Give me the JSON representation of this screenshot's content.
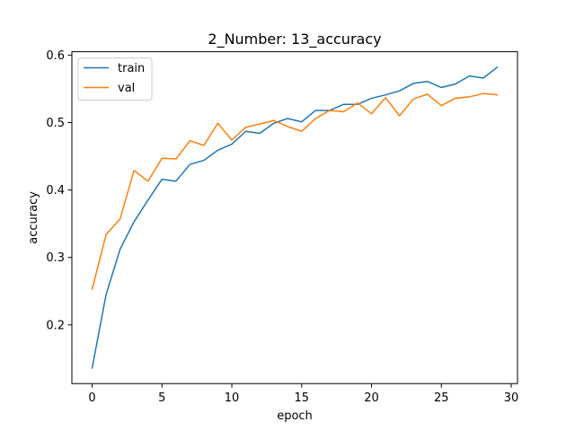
{
  "chart_data": {
    "type": "line",
    "title": "2_Number: 13_accuracy",
    "xlabel": "epoch",
    "ylabel": "accuracy",
    "xlim": [
      -1.45,
      30.45
    ],
    "ylim": [
      0.113,
      0.605
    ],
    "xticks": [
      0,
      5,
      10,
      15,
      20,
      25,
      30
    ],
    "yticks": [
      0.2,
      0.3,
      0.4,
      0.5,
      0.6
    ],
    "xtick_labels": [
      "0",
      "5",
      "10",
      "15",
      "20",
      "25",
      "30"
    ],
    "ytick_labels": [
      "0.2",
      "0.3",
      "0.4",
      "0.5",
      "0.6"
    ],
    "grid": false,
    "legend_position": "upper-left",
    "x": [
      0,
      1,
      2,
      3,
      4,
      5,
      6,
      7,
      8,
      9,
      10,
      11,
      12,
      13,
      14,
      15,
      16,
      17,
      18,
      19,
      20,
      21,
      22,
      23,
      24,
      25,
      26,
      27,
      28,
      29
    ],
    "series": [
      {
        "name": "train",
        "color": "#1f77b4",
        "values": [
          0.136,
          0.245,
          0.312,
          0.353,
          0.385,
          0.416,
          0.413,
          0.438,
          0.444,
          0.459,
          0.468,
          0.487,
          0.484,
          0.499,
          0.506,
          0.501,
          0.518,
          0.518,
          0.527,
          0.527,
          0.536,
          0.541,
          0.547,
          0.558,
          0.561,
          0.552,
          0.557,
          0.569,
          0.566,
          0.582
        ]
      },
      {
        "name": "val",
        "color": "#ff7f0e",
        "values": [
          0.253,
          0.334,
          0.357,
          0.429,
          0.413,
          0.447,
          0.446,
          0.473,
          0.466,
          0.499,
          0.474,
          0.493,
          0.498,
          0.503,
          0.494,
          0.487,
          0.506,
          0.518,
          0.516,
          0.529,
          0.513,
          0.537,
          0.51,
          0.535,
          0.542,
          0.525,
          0.536,
          0.538,
          0.543,
          0.541
        ]
      }
    ]
  }
}
